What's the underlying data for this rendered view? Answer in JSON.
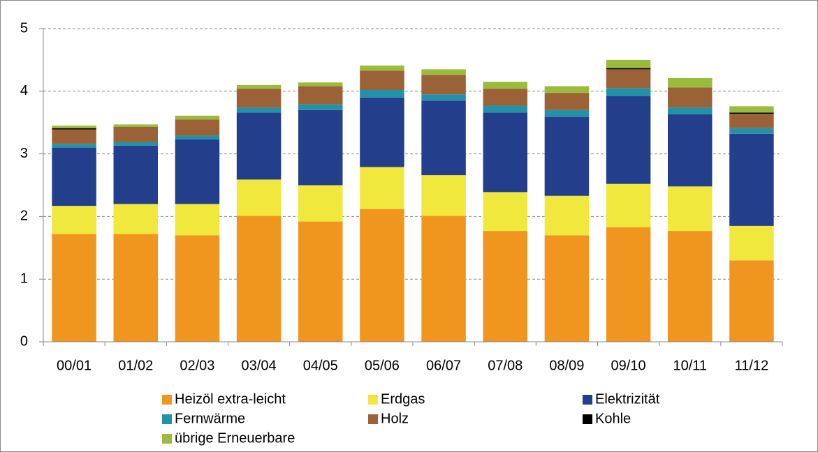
{
  "chart_data": {
    "type": "stacked_bar",
    "categories": [
      "00/01",
      "01/02",
      "02/03",
      "03/04",
      "04/05",
      "05/06",
      "06/07",
      "07/08",
      "08/09",
      "09/10",
      "10/11",
      "11/12"
    ],
    "series": [
      {
        "name": "Heizöl extra-leicht",
        "color": "#f0961e",
        "values": [
          1.72,
          1.72,
          1.7,
          2.01,
          1.92,
          2.12,
          2.01,
          1.77,
          1.7,
          1.83,
          1.77,
          1.3
        ]
      },
      {
        "name": "Erdgas",
        "color": "#f0e83c",
        "values": [
          0.45,
          0.48,
          0.5,
          0.58,
          0.58,
          0.67,
          0.65,
          0.62,
          0.63,
          0.69,
          0.71,
          0.55
        ]
      },
      {
        "name": "Elektrizität",
        "color": "#233f8c",
        "values": [
          0.93,
          0.93,
          1.03,
          1.07,
          1.2,
          1.11,
          1.19,
          1.27,
          1.26,
          1.4,
          1.15,
          1.47
        ]
      },
      {
        "name": "Fernwärme",
        "color": "#2391a8",
        "values": [
          0.06,
          0.06,
          0.06,
          0.08,
          0.09,
          0.12,
          0.1,
          0.11,
          0.11,
          0.13,
          0.11,
          0.09
        ]
      },
      {
        "name": "Holz",
        "color": "#9b6237",
        "values": [
          0.23,
          0.24,
          0.26,
          0.3,
          0.29,
          0.31,
          0.31,
          0.27,
          0.27,
          0.3,
          0.32,
          0.23
        ]
      },
      {
        "name": "Kohle",
        "color": "#000000",
        "values": [
          0.02,
          0,
          0,
          0,
          0,
          0,
          0,
          0,
          0,
          0.02,
          0,
          0.02
        ]
      },
      {
        "name": "übrige Erneuerbare",
        "color": "#9bbb3c",
        "values": [
          0.04,
          0.04,
          0.06,
          0.06,
          0.06,
          0.08,
          0.09,
          0.11,
          0.11,
          0.13,
          0.15,
          0.1
        ]
      }
    ],
    "ylim": [
      0,
      5
    ],
    "yticks": [
      0,
      1,
      2,
      3,
      4,
      5
    ],
    "grid": true
  }
}
